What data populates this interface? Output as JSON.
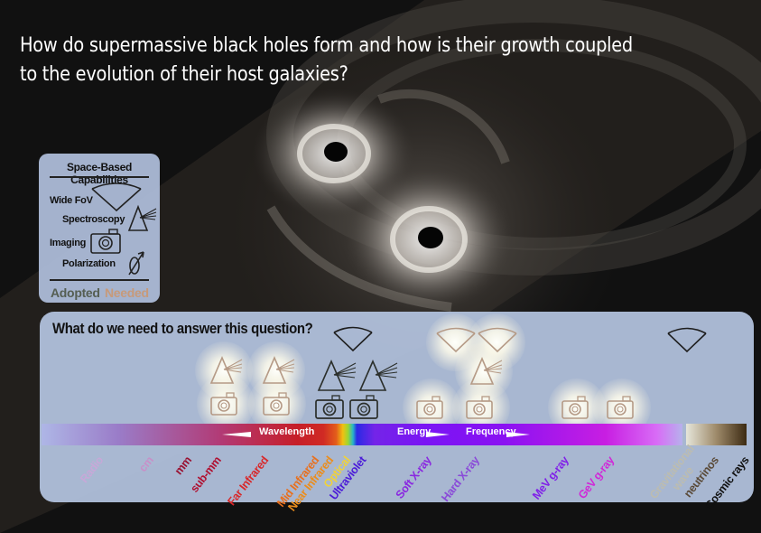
{
  "question": {
    "line1": "How do supermassive black holes form and how is their growth coupled",
    "line2": "to the evolution of their host galaxies?"
  },
  "legend": {
    "title": "Space-Based Capabilities",
    "capabilities": [
      "Wide FoV",
      "Spectroscopy",
      "Imaging",
      "Polarization"
    ],
    "adopted": "Adopted",
    "needed": "Needed",
    "colors": {
      "adopted": "#555e52",
      "needed": "#c79a7a"
    }
  },
  "panel": {
    "title": "What do we need to answer this question?",
    "spectrum_labels": {
      "wavelength": "Wavelength",
      "energy": "Energy",
      "frequency": "Frequency"
    },
    "bands": [
      {
        "label": "Radio",
        "color": "#c7a8d8"
      },
      {
        "label": "cm",
        "color": "#c790c8"
      },
      {
        "label": "mm",
        "color": "#9a1030"
      },
      {
        "label": "sub-mm",
        "color": "#b01030"
      },
      {
        "label": "Far Infrared",
        "color": "#d8282a"
      },
      {
        "label": "Mid Infrared",
        "color": "#e8701e"
      },
      {
        "label": "Near Infrared",
        "color": "#eb8d1c"
      },
      {
        "label": "Optical",
        "color": "#f0d23a"
      },
      {
        "label": "Ultraviolet",
        "color": "#4a1ad8"
      },
      {
        "label": "Soft X-ray",
        "color": "#8a28e0"
      },
      {
        "label": "Hard X-ray",
        "color": "#8a4ad8"
      },
      {
        "label": "MeV g-ray",
        "color": "#8020e8"
      },
      {
        "label": "GeV g-ray",
        "color": "#d028d8"
      },
      {
        "label": "Gravitational wave",
        "color": "#bcbcb0"
      },
      {
        "label": "neutrinos",
        "color": "#5a4a38"
      },
      {
        "label": "Cosmic rays",
        "color": "#111111"
      }
    ]
  }
}
